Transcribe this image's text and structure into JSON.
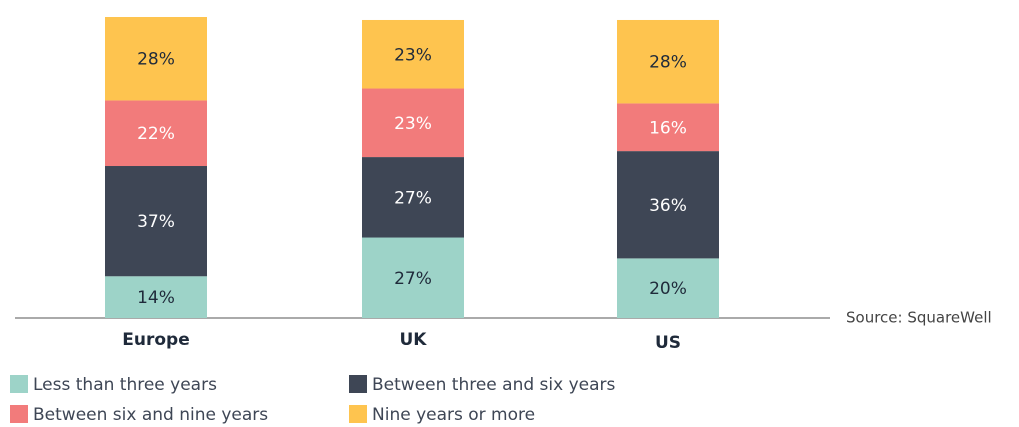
{
  "chart_data": {
    "type": "stacked_bar",
    "categories": [
      "Europe",
      "UK",
      "US"
    ],
    "series": [
      {
        "name": "Less than three years",
        "color": "#9dd3c8",
        "values": [
          14,
          27,
          20
        ],
        "value_labels": [
          "14%",
          "27%",
          "20%"
        ]
      },
      {
        "name": "Between three and six years",
        "color": "#3e4655",
        "values": [
          37,
          27,
          36
        ],
        "value_labels": [
          "37%",
          "27%",
          "36%"
        ]
      },
      {
        "name": "Between six and nine years",
        "color": "#f27b7b",
        "values": [
          22,
          23,
          16
        ],
        "value_labels": [
          "22%",
          "23%",
          "16%"
        ]
      },
      {
        "name": "Nine years or more",
        "color": "#fec44f",
        "values": [
          28,
          23,
          28
        ],
        "value_labels": [
          "28%",
          "23%",
          "28%"
        ]
      }
    ],
    "annotation": "Source: SquareWell"
  }
}
